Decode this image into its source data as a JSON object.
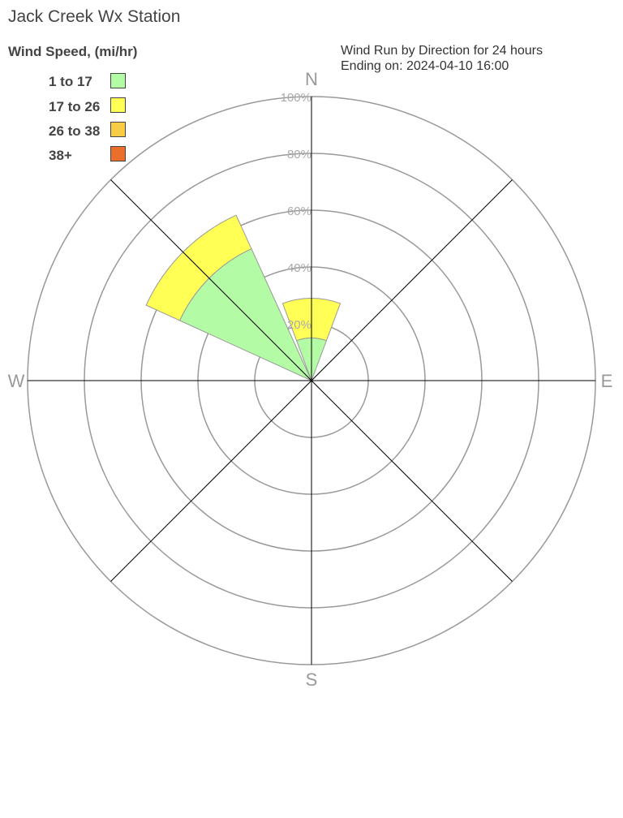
{
  "chart_data": {
    "type": "wind-rose",
    "title": "Jack Creek Wx Station",
    "subtitle_lines": [
      "Wind Run by Direction for 24 hours",
      "Ending on: 2024-04-10 16:00"
    ],
    "legend_title": "Wind Speed, (mi/hr)",
    "legend_placement": "top-left",
    "speed_bins": [
      {
        "label": "1 to 17",
        "color": "#b3fba4"
      },
      {
        "label": "17 to 26",
        "color": "#ffff55"
      },
      {
        "label": "26 to 38",
        "color": "#f8cc44"
      },
      {
        "label": "38+",
        "color": "#ec6e2c"
      }
    ],
    "directions": [
      "N",
      "NE",
      "E",
      "SE",
      "S",
      "SW",
      "W",
      "NW"
    ],
    "compass_labels": {
      "N": "N",
      "E": "E",
      "S": "S",
      "W": "W"
    },
    "radial_ticks": [
      "20%",
      "40%",
      "60%",
      "80%",
      "100%"
    ],
    "radial_range": [
      0,
      100
    ],
    "series": [
      {
        "direction": "N",
        "values": [
          15,
          14,
          0,
          0
        ]
      },
      {
        "direction": "NE",
        "values": [
          0,
          0,
          0,
          0
        ]
      },
      {
        "direction": "E",
        "values": [
          0,
          0,
          0,
          0
        ]
      },
      {
        "direction": "SE",
        "values": [
          0,
          0,
          0,
          0
        ]
      },
      {
        "direction": "S",
        "values": [
          0,
          0,
          0,
          0
        ]
      },
      {
        "direction": "SW",
        "values": [
          0,
          0,
          0,
          0
        ]
      },
      {
        "direction": "W",
        "values": [
          0,
          0,
          0,
          0
        ]
      },
      {
        "direction": "NW",
        "values": [
          51,
          13,
          0,
          0
        ]
      }
    ]
  }
}
